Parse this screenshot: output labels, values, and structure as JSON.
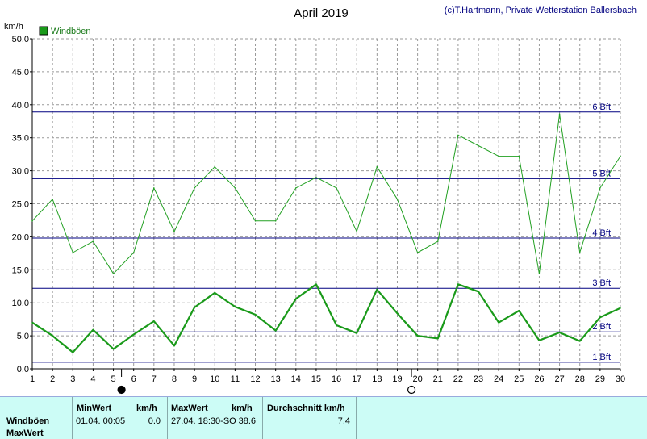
{
  "credit": "(c)T.Hartmann, Private Wetterstation Ballersbach",
  "colors": {
    "series_thin": "#22a022",
    "series_bold": "#1a9a1a",
    "bft_line": "#000080",
    "grid": "#999999",
    "table_bg": "#ccfcf6"
  },
  "chart_data": {
    "type": "line",
    "title": "April 2019",
    "ylabel": "km/h",
    "ylim": [
      0,
      50
    ],
    "xlim": [
      1,
      30
    ],
    "y_ticks": [
      "0.0",
      "5.0",
      "10.0",
      "15.0",
      "20.0",
      "25.0",
      "30.0",
      "35.0",
      "40.0",
      "45.0",
      "50.0"
    ],
    "x_ticks": [
      "1",
      "2",
      "3",
      "4",
      "5",
      "6",
      "7",
      "8",
      "9",
      "10",
      "11",
      "12",
      "13",
      "14",
      "15",
      "16",
      "17",
      "18",
      "19",
      "20",
      "21",
      "22",
      "23",
      "24",
      "25",
      "26",
      "27",
      "28",
      "29",
      "30"
    ],
    "grid": true,
    "legend": {
      "position": "top-left",
      "label": "Windböen"
    },
    "beaufort_lines": [
      {
        "label": "1 Bft",
        "value": 1.0
      },
      {
        "label": "2 Bft",
        "value": 5.6
      },
      {
        "label": "3 Bft",
        "value": 12.2
      },
      {
        "label": "4 Bft",
        "value": 19.8
      },
      {
        "label": "5 Bft",
        "value": 28.8
      },
      {
        "label": "6 Bft",
        "value": 38.9
      }
    ],
    "moon_phases": [
      {
        "day": 5.4,
        "phase": "new-moon"
      },
      {
        "day": 19.7,
        "phase": "full-moon"
      }
    ],
    "series": [
      {
        "name": "Windböen",
        "style": "max",
        "x": [
          1,
          2,
          3,
          4,
          5,
          6,
          7,
          8,
          9,
          10,
          11,
          12,
          13,
          14,
          15,
          16,
          17,
          18,
          19,
          20,
          21,
          22,
          23,
          24,
          25,
          26,
          27,
          28,
          29,
          30
        ],
        "values": [
          22.4,
          25.7,
          17.6,
          19.3,
          14.4,
          17.6,
          27.4,
          20.8,
          27.4,
          30.6,
          27.4,
          22.4,
          22.4,
          27.4,
          29.0,
          27.4,
          20.8,
          30.6,
          25.7,
          17.6,
          19.3,
          35.4,
          33.8,
          32.2,
          32.2,
          14.4,
          38.6,
          17.6,
          27.4,
          32.2
        ]
      },
      {
        "name": "Windböen",
        "style": "mean",
        "x": [
          1,
          2,
          3,
          4,
          5,
          6,
          7,
          8,
          9,
          10,
          11,
          12,
          13,
          14,
          15,
          16,
          17,
          18,
          19,
          20,
          21,
          22,
          23,
          24,
          25,
          26,
          27,
          28,
          29,
          30
        ],
        "values": [
          7.0,
          5.0,
          2.5,
          5.9,
          3.0,
          5.2,
          7.2,
          3.5,
          9.3,
          11.5,
          9.4,
          8.2,
          5.8,
          10.6,
          12.8,
          6.6,
          5.4,
          12.0,
          8.4,
          5.0,
          4.6,
          12.8,
          11.7,
          7.0,
          8.8,
          4.3,
          5.5,
          4.2,
          7.8,
          9.2
        ]
      }
    ]
  },
  "table": {
    "row_label_1": "Windböen",
    "row_label_2": "MaxWert",
    "min_header": "MinWert",
    "min_unit": "km/h",
    "min_time": "01.04.  00:05",
    "min_value": "0.0",
    "max_header": "MaxWert",
    "max_unit": "km/h",
    "max_time": "27.04.  18:30-SO",
    "max_value": "38.6",
    "avg_header": "Durchschnitt km/h",
    "avg_value": "7.4"
  }
}
